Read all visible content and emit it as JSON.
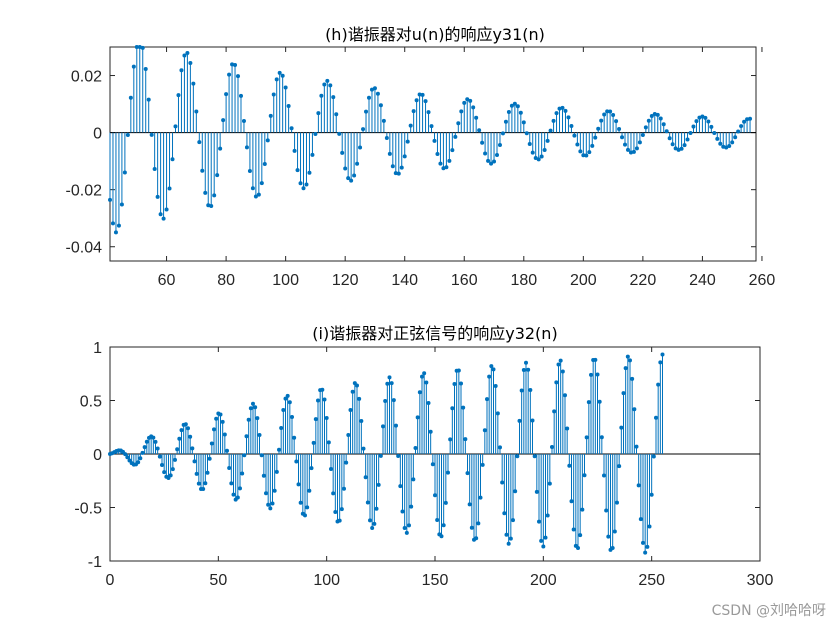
{
  "chart_data": [
    {
      "type": "stem",
      "title": "(h)谐振器对u(n)的响应y31(n)",
      "xlabel": "",
      "ylabel": "",
      "xlim": [
        41,
        258
      ],
      "ylim": [
        -0.045,
        0.03
      ],
      "xticks": [
        "60",
        "80",
        "100",
        "120",
        "140",
        "160",
        "180",
        "200",
        "220",
        "240",
        "260"
      ],
      "yticks": [
        "0.02",
        "0",
        "-0.02",
        "-0.04"
      ],
      "marker": "filled-dot",
      "series_color": "#0072BD",
      "model": {
        "kind": "decaying_sinusoid",
        "n_start": 41,
        "n_end": 256,
        "period": 15.75,
        "peak_n": 51,
        "amplitude": 0.0325,
        "decay_per_sample": 0.00926
      },
      "sample_points": [
        {
          "n": 41,
          "y": -0.026
        },
        {
          "n": 43,
          "y": -0.0325
        },
        {
          "n": 51,
          "y": 0.03
        },
        {
          "n": 59,
          "y": -0.027
        },
        {
          "n": 67,
          "y": 0.026
        },
        {
          "n": 83,
          "y": 0.023
        },
        {
          "n": 99,
          "y": 0.019
        },
        {
          "n": 115,
          "y": 0.016
        },
        {
          "n": 130,
          "y": 0.014
        },
        {
          "n": 146,
          "y": 0.012
        },
        {
          "n": 162,
          "y": 0.01
        },
        {
          "n": 178,
          "y": 0.0087
        },
        {
          "n": 193,
          "y": 0.0073
        },
        {
          "n": 209,
          "y": 0.0063
        },
        {
          "n": 225,
          "y": 0.0053
        },
        {
          "n": 241,
          "y": 0.0045
        },
        {
          "n": 256,
          "y": 0.004
        }
      ]
    },
    {
      "type": "stem",
      "title": "(i)谐振器对正弦信号的响应y32(n)",
      "xlabel": "",
      "ylabel": "",
      "xlim": [
        0,
        300
      ],
      "ylim": [
        -1,
        1
      ],
      "xticks": [
        "0",
        "50",
        "100",
        "150",
        "200",
        "250",
        "300"
      ],
      "yticks": [
        "1",
        "0.5",
        "0",
        "-0.5",
        "-1"
      ],
      "marker": "filled-dot",
      "series_color": "#0072BD",
      "model": {
        "kind": "growing_sinusoid",
        "n_start": 0,
        "n_end": 255,
        "period": 15.75,
        "peak_n": 255,
        "steady_amplitude": 0.93,
        "settle_per_sample": 0.00926
      },
      "sample_points": [
        {
          "n": 0,
          "y": 0
        },
        {
          "n": 5,
          "y": 0.04
        },
        {
          "n": 21,
          "y": 0.18
        },
        {
          "n": 37,
          "y": 0.3
        },
        {
          "n": 53,
          "y": 0.4
        },
        {
          "n": 68,
          "y": 0.5
        },
        {
          "n": 84,
          "y": 0.58
        },
        {
          "n": 100,
          "y": 0.64
        },
        {
          "n": 116,
          "y": 0.7
        },
        {
          "n": 132,
          "y": 0.74
        },
        {
          "n": 147,
          "y": 0.78
        },
        {
          "n": 163,
          "y": 0.81
        },
        {
          "n": 179,
          "y": 0.83
        },
        {
          "n": 194,
          "y": 0.86
        },
        {
          "n": 210,
          "y": 0.87
        },
        {
          "n": 226,
          "y": 0.89
        },
        {
          "n": 241,
          "y": 0.9
        },
        {
          "n": 255,
          "y": 0.92
        },
        {
          "n": 248,
          "y": -0.9
        },
        {
          "n": 233,
          "y": -0.88
        },
        {
          "n": 217,
          "y": -0.86
        }
      ]
    }
  ],
  "watermark": "CSDN @刘哈哈呀"
}
